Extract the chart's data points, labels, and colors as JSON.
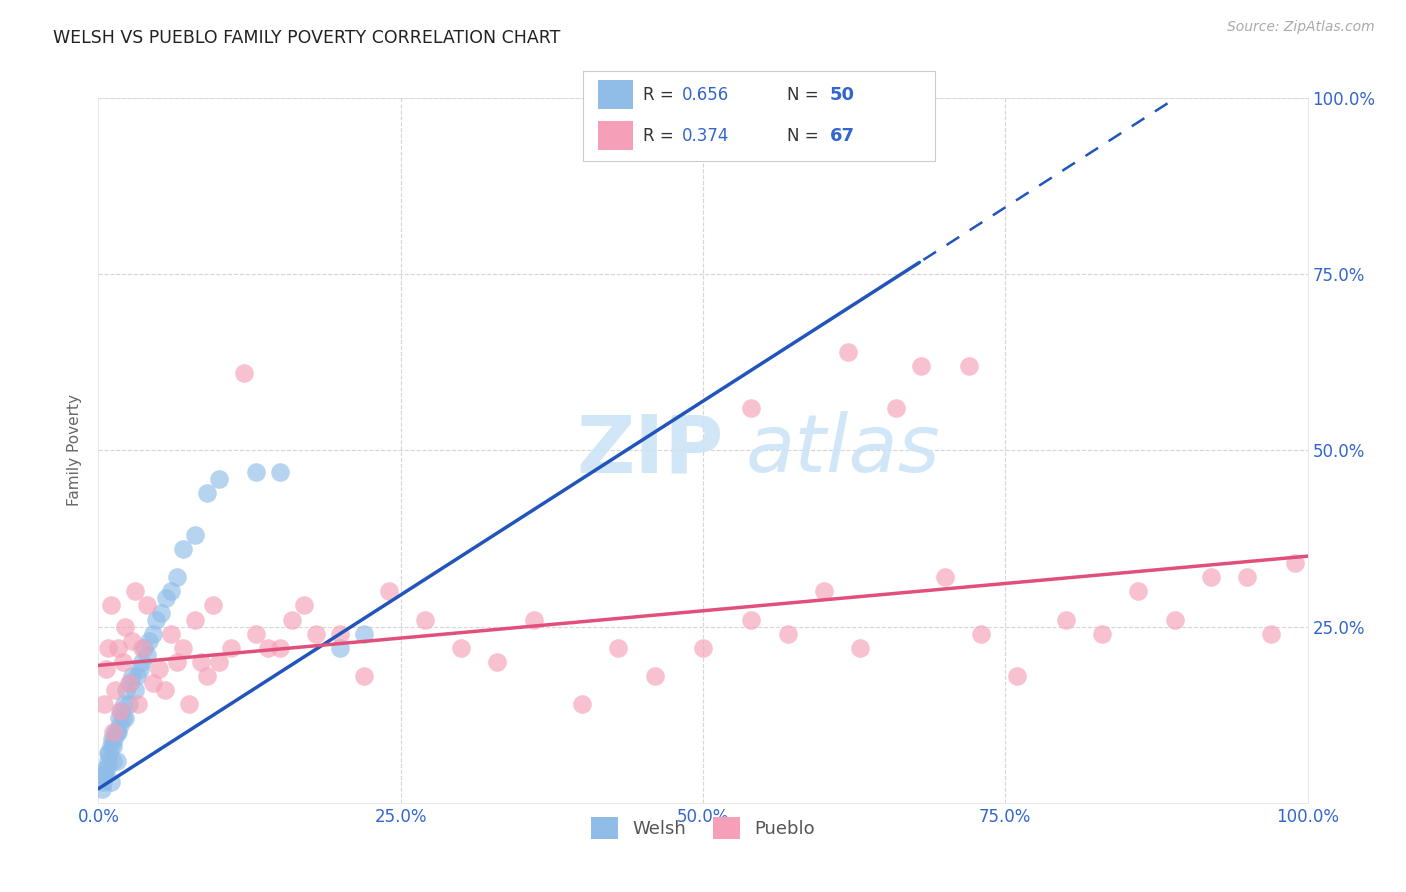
{
  "title": "WELSH VS PUEBLO FAMILY POVERTY CORRELATION CHART",
  "source": "Source: ZipAtlas.com",
  "ylabel": "Family Poverty",
  "welsh_label": "Welsh",
  "pueblo_label": "Pueblo",
  "welsh_R": 0.656,
  "welsh_N": 50,
  "pueblo_R": 0.374,
  "pueblo_N": 67,
  "watermark_line1": "ZIP",
  "watermark_line2": "atlas",
  "title_color": "#222222",
  "source_color": "#aaaaaa",
  "welsh_dot_color": "#90bce8",
  "welsh_line_color": "#2255bb",
  "pueblo_dot_color": "#f5a0b8",
  "pueblo_line_color": "#e0507a",
  "axis_label_color": "#3366cc",
  "background_color": "#ffffff",
  "grid_color": "#cccccc",
  "xlim": [
    0,
    1
  ],
  "ylim": [
    0,
    1
  ],
  "welsh_line_m": 1.1,
  "welsh_line_b": 0.02,
  "welsh_line_solid_end": 0.68,
  "pueblo_line_m": 0.155,
  "pueblo_line_b": 0.195,
  "welsh_x": [
    0.003,
    0.004,
    0.005,
    0.005,
    0.006,
    0.007,
    0.008,
    0.008,
    0.009,
    0.01,
    0.01,
    0.011,
    0.012,
    0.012,
    0.013,
    0.014,
    0.015,
    0.015,
    0.016,
    0.017,
    0.018,
    0.019,
    0.02,
    0.021,
    0.022,
    0.023,
    0.025,
    0.026,
    0.028,
    0.03,
    0.032,
    0.034,
    0.036,
    0.038,
    0.04,
    0.042,
    0.045,
    0.048,
    0.052,
    0.056,
    0.06,
    0.065,
    0.07,
    0.08,
    0.09,
    0.1,
    0.13,
    0.15,
    0.2,
    0.22
  ],
  "welsh_y": [
    0.02,
    0.03,
    0.04,
    0.04,
    0.05,
    0.05,
    0.06,
    0.07,
    0.07,
    0.03,
    0.08,
    0.09,
    0.06,
    0.08,
    0.09,
    0.1,
    0.06,
    0.1,
    0.1,
    0.12,
    0.11,
    0.13,
    0.12,
    0.14,
    0.12,
    0.16,
    0.14,
    0.17,
    0.18,
    0.16,
    0.18,
    0.19,
    0.2,
    0.22,
    0.21,
    0.23,
    0.24,
    0.26,
    0.27,
    0.29,
    0.3,
    0.32,
    0.36,
    0.38,
    0.44,
    0.46,
    0.47,
    0.47,
    0.22,
    0.24
  ],
  "pueblo_x": [
    0.005,
    0.006,
    0.008,
    0.01,
    0.012,
    0.014,
    0.016,
    0.018,
    0.02,
    0.022,
    0.025,
    0.028,
    0.03,
    0.033,
    0.036,
    0.04,
    0.045,
    0.05,
    0.055,
    0.06,
    0.065,
    0.07,
    0.075,
    0.08,
    0.085,
    0.09,
    0.095,
    0.1,
    0.11,
    0.12,
    0.13,
    0.14,
    0.15,
    0.16,
    0.17,
    0.18,
    0.2,
    0.22,
    0.24,
    0.27,
    0.3,
    0.33,
    0.36,
    0.4,
    0.43,
    0.46,
    0.5,
    0.54,
    0.57,
    0.6,
    0.63,
    0.66,
    0.7,
    0.73,
    0.76,
    0.8,
    0.83,
    0.86,
    0.89,
    0.92,
    0.95,
    0.97,
    0.99,
    0.54,
    0.62,
    0.68,
    0.72
  ],
  "pueblo_y": [
    0.14,
    0.19,
    0.22,
    0.28,
    0.1,
    0.16,
    0.22,
    0.13,
    0.2,
    0.25,
    0.17,
    0.23,
    0.3,
    0.14,
    0.22,
    0.28,
    0.17,
    0.19,
    0.16,
    0.24,
    0.2,
    0.22,
    0.14,
    0.26,
    0.2,
    0.18,
    0.28,
    0.2,
    0.22,
    0.61,
    0.24,
    0.22,
    0.22,
    0.26,
    0.28,
    0.24,
    0.24,
    0.18,
    0.3,
    0.26,
    0.22,
    0.2,
    0.26,
    0.14,
    0.22,
    0.18,
    0.22,
    0.26,
    0.24,
    0.3,
    0.22,
    0.56,
    0.32,
    0.24,
    0.18,
    0.26,
    0.24,
    0.3,
    0.26,
    0.32,
    0.32,
    0.24,
    0.34,
    0.56,
    0.64,
    0.62,
    0.62
  ]
}
